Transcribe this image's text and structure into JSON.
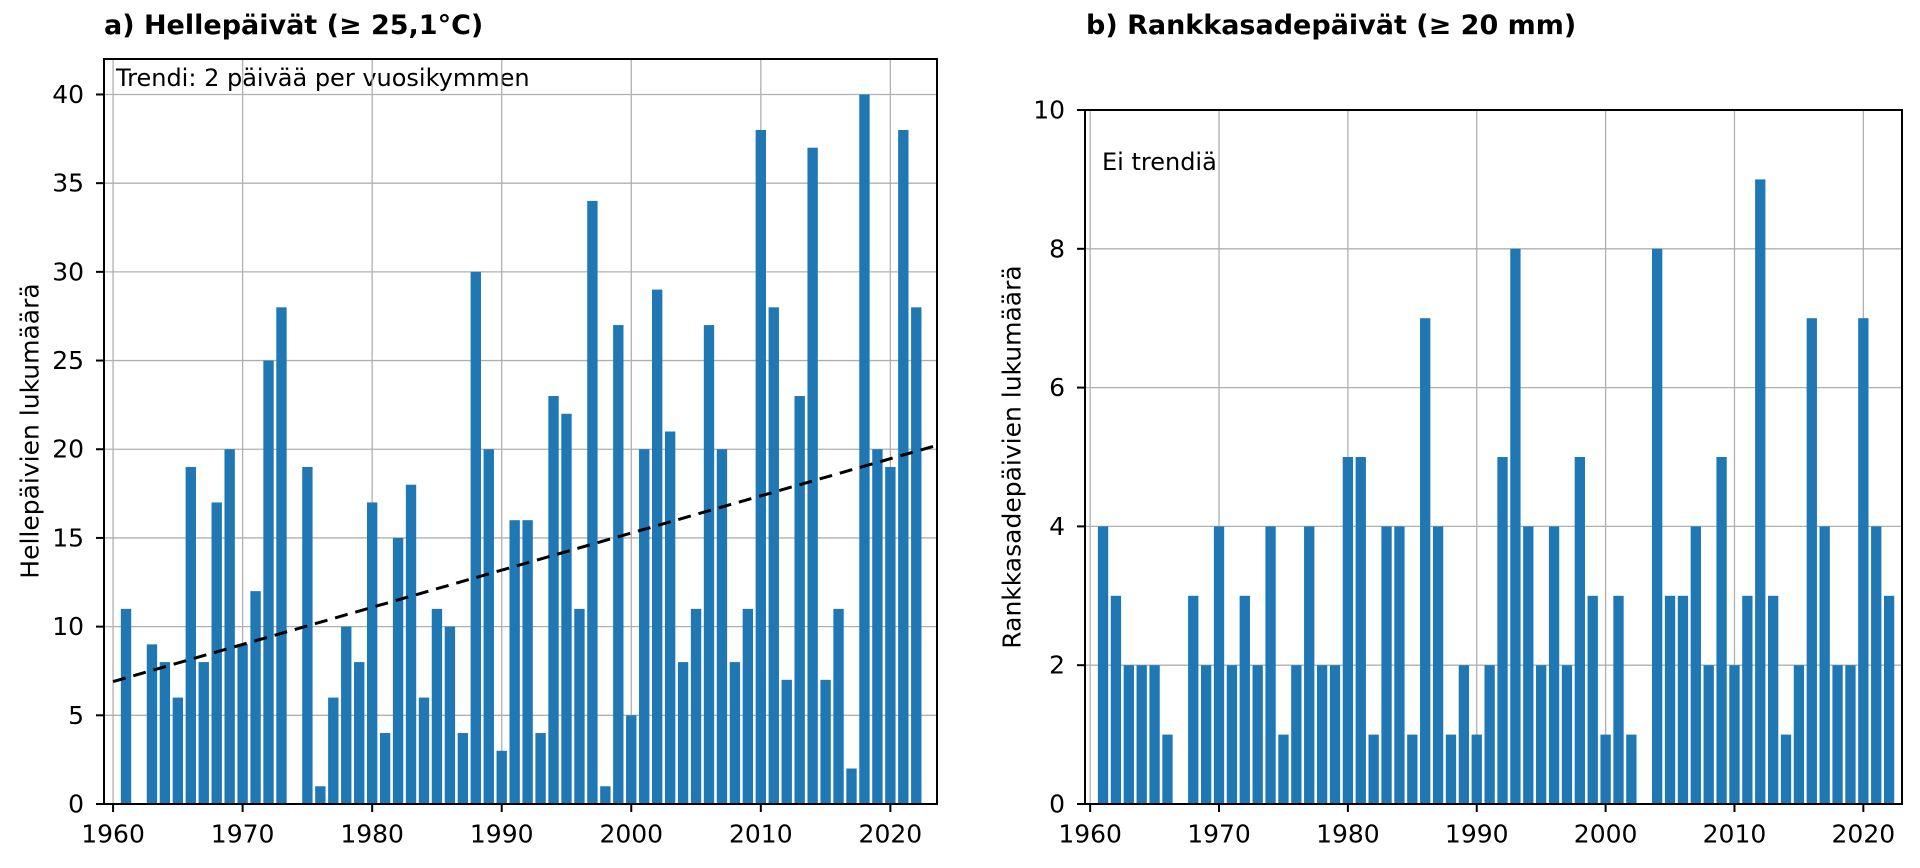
{
  "figure": {
    "background": "#ffffff"
  },
  "colors": {
    "bar": "#1f77b4",
    "grid": "#b0b0b0",
    "axis": "#000000",
    "trend": "#000000"
  },
  "chart_data": [
    {
      "type": "bar",
      "title": "a) Hellepäivät (≥ 25,1°C)",
      "annotation": "Trendi: 2 päivää per vuosikymmen",
      "ylabel": "Hellepäivien lukumäärä",
      "xlabel": "",
      "grid": true,
      "bar_color": "#1f77b4",
      "xlim": [
        1959.3,
        2023.6
      ],
      "ylim": [
        0,
        42
      ],
      "xticks": [
        1960,
        1970,
        1980,
        1990,
        2000,
        2010,
        2020
      ],
      "yticks": [
        0,
        5,
        10,
        15,
        20,
        25,
        30,
        35,
        40
      ],
      "x": [
        1961,
        1962,
        1963,
        1964,
        1965,
        1966,
        1967,
        1968,
        1969,
        1970,
        1971,
        1972,
        1973,
        1974,
        1975,
        1976,
        1977,
        1978,
        1979,
        1980,
        1981,
        1982,
        1983,
        1984,
        1985,
        1986,
        1987,
        1988,
        1989,
        1990,
        1991,
        1992,
        1993,
        1994,
        1995,
        1996,
        1997,
        1998,
        1999,
        2000,
        2001,
        2002,
        2003,
        2004,
        2005,
        2006,
        2007,
        2008,
        2009,
        2010,
        2011,
        2012,
        2013,
        2014,
        2015,
        2016,
        2017,
        2018,
        2019,
        2020,
        2021,
        2022
      ],
      "values": [
        11,
        0,
        9,
        8,
        6,
        19,
        8,
        17,
        20,
        9,
        12,
        25,
        28,
        0,
        19,
        1,
        6,
        10,
        8,
        17,
        4,
        15,
        18,
        6,
        11,
        10,
        4,
        30,
        20,
        3,
        16,
        16,
        4,
        23,
        22,
        11,
        34,
        1,
        27,
        5,
        20,
        29,
        21,
        8,
        11,
        27,
        20,
        8,
        11,
        38,
        28,
        7,
        23,
        37,
        7,
        11,
        2,
        40,
        20,
        19,
        38,
        28
      ],
      "trend_line": {
        "style": "dashed",
        "color": "#000000",
        "x1": 1960.0,
        "y1": 6.9,
        "x2": 2023.5,
        "y2": 20.2
      }
    },
    {
      "type": "bar",
      "title": "b) Rankkasadepäivät (≥ 20 mm)",
      "annotation": "Ei trendiä",
      "ylabel": "Rankkasadepäivien lukumäärä",
      "xlabel": "",
      "grid": true,
      "bar_color": "#1f77b4",
      "xlim": [
        1959.6,
        2023.0
      ],
      "ylim": [
        0,
        10
      ],
      "xticks": [
        1960,
        1970,
        1980,
        1990,
        2000,
        2010,
        2020
      ],
      "yticks": [
        0,
        2,
        4,
        6,
        8,
        10
      ],
      "x": [
        1961,
        1962,
        1963,
        1964,
        1965,
        1966,
        1967,
        1968,
        1969,
        1970,
        1971,
        1972,
        1973,
        1974,
        1975,
        1976,
        1977,
        1978,
        1979,
        1980,
        1981,
        1982,
        1983,
        1984,
        1985,
        1986,
        1987,
        1988,
        1989,
        1990,
        1991,
        1992,
        1993,
        1994,
        1995,
        1996,
        1997,
        1998,
        1999,
        2000,
        2001,
        2002,
        2003,
        2004,
        2005,
        2006,
        2007,
        2008,
        2009,
        2010,
        2011,
        2012,
        2013,
        2014,
        2015,
        2016,
        2017,
        2018,
        2019,
        2020,
        2021,
        2022
      ],
      "values": [
        4,
        3,
        2,
        2,
        2,
        1,
        0,
        3,
        2,
        4,
        2,
        3,
        2,
        4,
        1,
        2,
        4,
        2,
        2,
        5,
        5,
        1,
        4,
        4,
        1,
        7,
        4,
        1,
        2,
        1,
        2,
        5,
        8,
        4,
        2,
        4,
        2,
        5,
        3,
        1,
        3,
        1,
        0,
        8,
        3,
        3,
        4,
        2,
        5,
        2,
        3,
        9,
        3,
        1,
        2,
        7,
        4,
        2,
        2,
        7,
        4,
        3
      ],
      "trend_line": null
    }
  ]
}
